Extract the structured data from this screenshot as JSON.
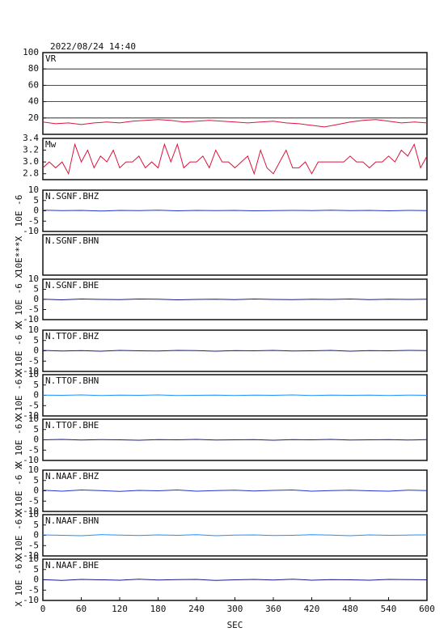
{
  "chart_data": [
    {
      "type": "line",
      "title": "2022/08/24 14:40",
      "label": "VR",
      "ylim": [
        0,
        100
      ],
      "yticks": [
        20,
        40,
        60,
        80,
        100
      ],
      "grid": true,
      "x": [
        0,
        20,
        40,
        60,
        80,
        100,
        120,
        140,
        160,
        180,
        200,
        220,
        240,
        260,
        280,
        300,
        320,
        340,
        360,
        380,
        400,
        420,
        440,
        460,
        480,
        500,
        520,
        540,
        560,
        580,
        600
      ],
      "series": [
        {
          "color": "#dc143c",
          "values": [
            15,
            13,
            14,
            12,
            14,
            15,
            14,
            16,
            17,
            18,
            17,
            15,
            16,
            17,
            16,
            15,
            14,
            15,
            16,
            14,
            13,
            11,
            9,
            12,
            15,
            17,
            18,
            16,
            14,
            15,
            14
          ]
        }
      ]
    },
    {
      "type": "line",
      "label": "Mw",
      "ylim": [
        2.7,
        3.4
      ],
      "yticks": [
        2.8,
        {
          "value": 3.0,
          "label": "3.0"
        },
        3.2,
        3.4
      ],
      "x": [
        0,
        10,
        20,
        30,
        40,
        50,
        60,
        70,
        80,
        90,
        100,
        110,
        120,
        130,
        140,
        150,
        160,
        170,
        180,
        190,
        200,
        210,
        220,
        230,
        240,
        250,
        260,
        270,
        280,
        290,
        300,
        310,
        320,
        330,
        340,
        350,
        360,
        370,
        380,
        390,
        400,
        410,
        420,
        430,
        440,
        450,
        460,
        470,
        480,
        490,
        500,
        510,
        520,
        530,
        540,
        550,
        560,
        570,
        580,
        590,
        600
      ],
      "series": [
        {
          "color": "#dc143c",
          "values": [
            2.9,
            3.0,
            2.9,
            3.0,
            2.8,
            3.3,
            3.0,
            3.2,
            2.9,
            3.1,
            3.0,
            3.2,
            2.9,
            3.0,
            3.0,
            3.1,
            2.9,
            3.0,
            2.9,
            3.3,
            3.0,
            3.3,
            2.9,
            3.0,
            3.0,
            3.1,
            2.9,
            3.2,
            3.0,
            3.0,
            2.9,
            3.0,
            3.1,
            2.8,
            3.2,
            2.9,
            2.8,
            3.0,
            3.2,
            2.9,
            2.9,
            3.0,
            2.8,
            3.0,
            3.0,
            3.0,
            3.0,
            3.0,
            3.1,
            3.0,
            3.0,
            2.9,
            3.0,
            3.0,
            3.1,
            3.0,
            3.2,
            3.1,
            3.3,
            2.9,
            3.1
          ]
        }
      ]
    },
    {
      "type": "line",
      "label": "N.SGNF.BHZ",
      "ylabel": "10E -6",
      "ylim": [
        -10,
        10
      ],
      "yticks": [
        -10,
        -5,
        0,
        5,
        10
      ],
      "x": [
        0,
        30,
        60,
        90,
        120,
        150,
        180,
        210,
        240,
        270,
        300,
        330,
        360,
        390,
        420,
        450,
        480,
        510,
        540,
        570,
        600
      ],
      "series": [
        {
          "color": "#2233cc",
          "values": [
            0.3,
            0.1,
            0.2,
            -0.1,
            0.2,
            0.1,
            0.3,
            0.0,
            0.2,
            0.1,
            0.2,
            0.0,
            0.1,
            0.2,
            0.1,
            0.3,
            0.1,
            0.2,
            0.0,
            0.2,
            0.1
          ]
        }
      ]
    },
    {
      "type": "line",
      "label": "N.SGNF.BHN",
      "ylabel": "10E***X"
    },
    {
      "type": "line",
      "label": "N.SGNF.BHE",
      "ylabel": "X 10E -6 X",
      "ylim": [
        -10,
        10
      ],
      "yticks": [
        -10,
        -5,
        0,
        5,
        10
      ],
      "x": [
        0,
        30,
        60,
        90,
        120,
        150,
        180,
        210,
        240,
        270,
        300,
        330,
        360,
        390,
        420,
        450,
        480,
        510,
        540,
        570,
        600
      ],
      "series": [
        {
          "color": "#1a1a8c",
          "values": [
            0.1,
            -0.2,
            0.2,
            0.0,
            -0.1,
            0.2,
            0.1,
            -0.2,
            0.0,
            0.1,
            -0.1,
            0.2,
            0.0,
            -0.1,
            0.1,
            0.0,
            0.2,
            -0.1,
            0.1,
            0.0,
            0.1
          ]
        }
      ]
    },
    {
      "type": "line",
      "label": "N.TTOF.BHZ",
      "ylabel": "X 10E -6 X",
      "ylim": [
        -10,
        10
      ],
      "yticks": [
        -10,
        -5,
        0,
        5,
        10
      ],
      "x": [
        0,
        30,
        60,
        90,
        120,
        150,
        180,
        210,
        240,
        270,
        300,
        330,
        360,
        390,
        420,
        450,
        480,
        510,
        540,
        570,
        600
      ],
      "series": [
        {
          "color": "#1a1a8c",
          "values": [
            0.2,
            -0.1,
            0.1,
            -0.2,
            0.2,
            0.0,
            -0.1,
            0.2,
            0.1,
            -0.2,
            0.1,
            0.0,
            0.2,
            -0.1,
            0.0,
            0.2,
            -0.2,
            0.1,
            0.0,
            0.2,
            0.1
          ]
        }
      ]
    },
    {
      "type": "line",
      "label": "N.TTOF.BHN",
      "ylabel": "X 10E -6 X",
      "ylim": [
        -10,
        10
      ],
      "yticks": [
        -10,
        -5,
        0,
        5,
        10
      ],
      "x": [
        0,
        30,
        60,
        90,
        120,
        150,
        180,
        210,
        240,
        270,
        300,
        330,
        360,
        390,
        420,
        450,
        480,
        510,
        540,
        570,
        600
      ],
      "series": [
        {
          "color": "#1e90ff",
          "values": [
            0.1,
            0.0,
            0.2,
            -0.1,
            0.1,
            0.0,
            0.2,
            -0.1,
            0.0,
            0.1,
            -0.1,
            0.1,
            0.0,
            0.2,
            -0.1,
            0.1,
            0.0,
            0.1,
            -0.1,
            0.1,
            0.0
          ]
        }
      ]
    },
    {
      "type": "line",
      "label": "N.TTOF.BHE",
      "ylabel": "X 10E -6 X",
      "ylim": [
        -10,
        10
      ],
      "yticks": [
        -10,
        -5,
        0,
        5,
        10
      ],
      "x": [
        0,
        30,
        60,
        90,
        120,
        150,
        180,
        210,
        240,
        270,
        300,
        330,
        360,
        390,
        420,
        450,
        480,
        510,
        540,
        570,
        600
      ],
      "series": [
        {
          "color": "#1a1a8c",
          "values": [
            0.0,
            0.2,
            -0.1,
            0.1,
            0.0,
            -0.2,
            0.1,
            0.0,
            0.2,
            -0.1,
            0.0,
            0.1,
            -0.2,
            0.1,
            0.0,
            0.2,
            -0.1,
            0.0,
            0.1,
            -0.1,
            0.1
          ]
        }
      ]
    },
    {
      "type": "line",
      "label": "N.NAAF.BHZ",
      "ylabel": "X 10E -6 X",
      "ylim": [
        -10,
        10
      ],
      "yticks": [
        -10,
        -5,
        0,
        5,
        10
      ],
      "x": [
        0,
        30,
        60,
        90,
        120,
        150,
        180,
        210,
        240,
        270,
        300,
        330,
        360,
        390,
        420,
        450,
        480,
        510,
        540,
        570,
        600
      ],
      "series": [
        {
          "color": "#2233cc",
          "values": [
            0.3,
            -0.2,
            0.4,
            0.1,
            -0.3,
            0.2,
            0.0,
            0.4,
            -0.2,
            0.1,
            0.3,
            -0.1,
            0.2,
            0.4,
            -0.2,
            0.1,
            0.3,
            0.0,
            -0.2,
            0.3,
            0.1
          ]
        }
      ]
    },
    {
      "type": "line",
      "label": "N.NAAF.BHN",
      "ylabel": "X 10E -6 X",
      "ylim": [
        -10,
        10
      ],
      "yticks": [
        -10,
        -5,
        0,
        5,
        10
      ],
      "x": [
        0,
        30,
        60,
        90,
        120,
        150,
        180,
        210,
        240,
        270,
        300,
        330,
        360,
        390,
        420,
        450,
        480,
        510,
        540,
        570,
        600
      ],
      "series": [
        {
          "color": "#1e90ff",
          "values": [
            0.2,
            0.0,
            -0.2,
            0.3,
            0.1,
            -0.1,
            0.2,
            0.0,
            0.3,
            -0.2,
            0.1,
            0.2,
            -0.1,
            0.0,
            0.3,
            0.1,
            -0.2,
            0.2,
            0.0,
            0.1,
            0.2
          ]
        }
      ]
    },
    {
      "type": "line",
      "label": "N.NAAF.BHE",
      "ylabel": "X 10E -6 X",
      "ylim": [
        -10,
        10
      ],
      "yticks": [
        -10,
        -5,
        0,
        5,
        10
      ],
      "x": [
        0,
        30,
        60,
        90,
        120,
        150,
        180,
        210,
        240,
        270,
        300,
        330,
        360,
        390,
        420,
        450,
        480,
        510,
        540,
        570,
        600
      ],
      "series": [
        {
          "color": "#1a1a8c",
          "values": [
            0.1,
            -0.3,
            0.2,
            0.0,
            -0.2,
            0.3,
            -0.1,
            0.1,
            0.2,
            -0.3,
            0.0,
            0.2,
            -0.1,
            0.3,
            -0.2,
            0.1,
            0.0,
            -0.2,
            0.2,
            0.1,
            0.0
          ]
        }
      ],
      "xlim": [
        0,
        600
      ],
      "xticks": [
        0,
        60,
        120,
        180,
        240,
        300,
        360,
        420,
        480,
        540,
        600
      ],
      "xlabel": "SEC"
    }
  ]
}
